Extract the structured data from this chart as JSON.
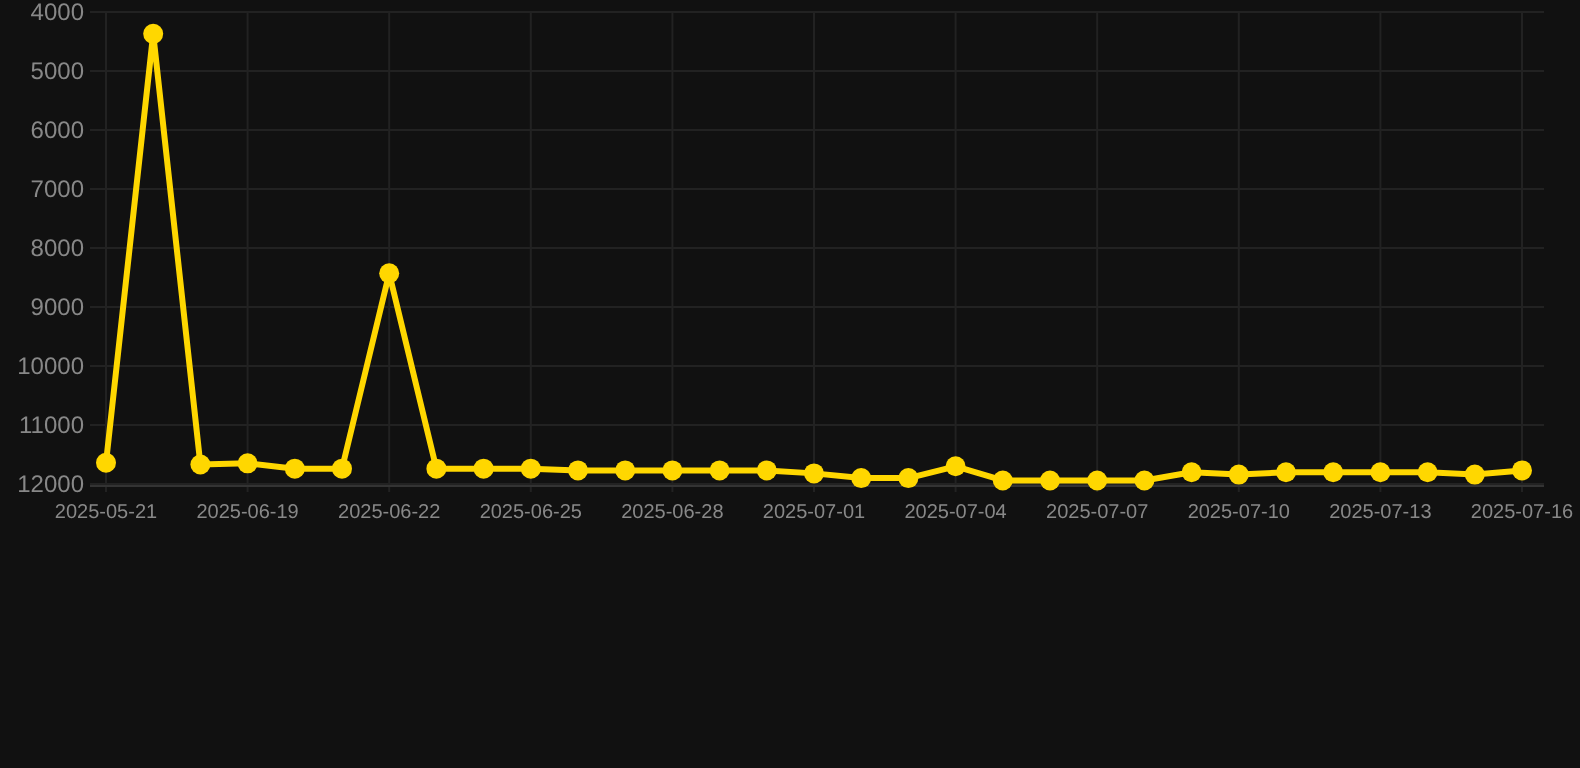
{
  "chart_data": {
    "type": "line",
    "categories": [
      "2025-05-21",
      null,
      null,
      "2025-06-19",
      null,
      null,
      "2025-06-22",
      null,
      null,
      "2025-06-25",
      null,
      null,
      "2025-06-28",
      null,
      null,
      "2025-07-01",
      null,
      null,
      "2025-07-04",
      null,
      null,
      "2025-07-07",
      null,
      null,
      "2025-07-10",
      null,
      null,
      "2025-07-13",
      null,
      null,
      "2025-07-16"
    ],
    "series": [
      {
        "color": "#ffd700",
        "values": [
          11640,
          4370,
          11670,
          11650,
          11740,
          11740,
          8430,
          11740,
          11740,
          11740,
          11770,
          11770,
          11770,
          11770,
          11770,
          11820,
          11900,
          11900,
          11700,
          11940,
          11940,
          11940,
          11940,
          11800,
          11840,
          11800,
          11800,
          11800,
          11800,
          11840,
          11770
        ]
      }
    ],
    "ylim": [
      12000,
      4000
    ],
    "yticks": [
      4000,
      5000,
      6000,
      7000,
      8000,
      9000,
      10000,
      11000,
      12000
    ],
    "grid": true,
    "marker": "circle",
    "line_style": "solid"
  }
}
